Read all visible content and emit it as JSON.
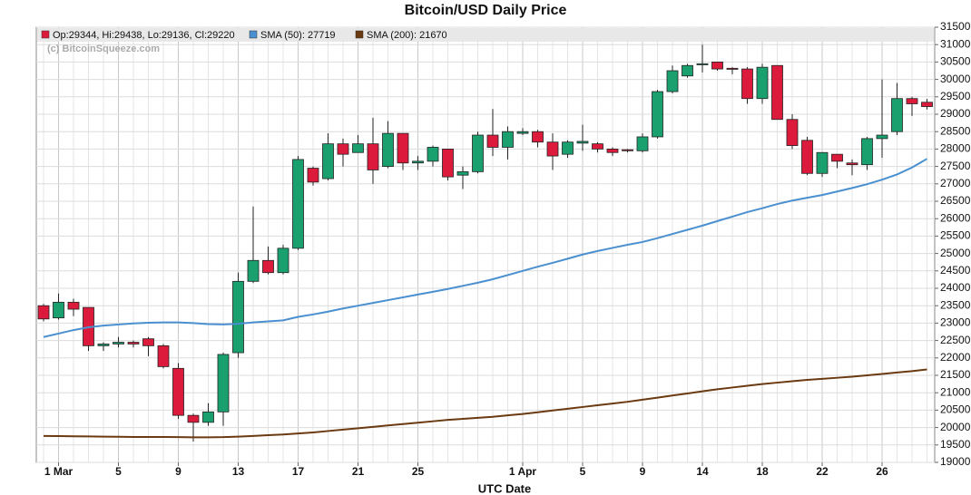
{
  "chart_data": {
    "type": "candlestick",
    "title": "Bitcoin/USD Daily Price",
    "x_label": "UTC Date",
    "watermark": "(c) BitcoinSqueeze.com",
    "categories": [
      null,
      "1 Mar",
      null,
      null,
      null,
      "5",
      null,
      null,
      null,
      "9",
      null,
      null,
      null,
      "13",
      null,
      null,
      null,
      "17",
      null,
      null,
      null,
      "21",
      null,
      null,
      null,
      "25",
      null,
      null,
      null,
      null,
      null,
      null,
      "1 Apr",
      null,
      null,
      null,
      "5",
      null,
      null,
      null,
      "9",
      null,
      null,
      null,
      "14",
      null,
      null,
      null,
      "18",
      null,
      null,
      null,
      "22",
      null,
      null,
      null,
      "26",
      null,
      null,
      null
    ],
    "ylim": [
      19000,
      31500
    ],
    "yticks": [
      19000,
      19500,
      20000,
      20500,
      21000,
      21500,
      22000,
      22500,
      23000,
      23500,
      24000,
      24500,
      25000,
      25500,
      26000,
      26500,
      27000,
      27500,
      28000,
      28500,
      29000,
      29500,
      30000,
      30500,
      31000,
      31500
    ],
    "grid": true,
    "series": [
      {
        "name": "Op:29344, Hi:29438, Lo:29136, Cl:29220",
        "color_up": "#1aa06e",
        "color_down": "#dc1a3c",
        "open": [
          23500,
          23150,
          23600,
          23450,
          22350,
          22400,
          22450,
          22550,
          22350,
          21700,
          20350,
          20150,
          20450,
          22150,
          24200,
          24800,
          24450,
          25150,
          27450,
          27150,
          28150,
          27900,
          28150,
          27500,
          28450,
          27600,
          27650,
          28000,
          27250,
          27350,
          28400,
          28050,
          28450,
          28500,
          28200,
          27850,
          28170,
          28150,
          28000,
          27980,
          27950,
          28350,
          29650,
          30100,
          30420,
          30500,
          30320,
          30300,
          29450,
          30400,
          28850,
          28250,
          27300,
          27850,
          27600,
          27550,
          28300,
          28500,
          29450,
          29344
        ],
        "high": [
          23550,
          23850,
          23700,
          23450,
          22450,
          22600,
          22500,
          22600,
          22400,
          21850,
          20400,
          20700,
          22150,
          24450,
          26350,
          25200,
          25250,
          27800,
          27500,
          28450,
          28300,
          28400,
          28900,
          28800,
          28450,
          27800,
          28100,
          28000,
          27500,
          28500,
          29150,
          28650,
          28600,
          28550,
          28450,
          28250,
          28700,
          28200,
          28050,
          28000,
          28450,
          29700,
          30400,
          30450,
          31000,
          30500,
          30350,
          30350,
          30450,
          30400,
          29000,
          28350,
          27900,
          27850,
          27700,
          28350,
          30000,
          29900,
          29500,
          29438
        ],
        "low": [
          23050,
          23100,
          23200,
          22200,
          22200,
          22300,
          22300,
          22050,
          21700,
          20250,
          19600,
          20050,
          20050,
          22000,
          24150,
          24400,
          24400,
          25100,
          26950,
          27100,
          27500,
          27900,
          27000,
          27450,
          27400,
          27400,
          27500,
          27100,
          26850,
          27300,
          27800,
          27700,
          28400,
          28050,
          27400,
          27750,
          27950,
          27900,
          27800,
          27900,
          27900,
          28300,
          29600,
          30050,
          30200,
          30250,
          30150,
          29300,
          29300,
          28850,
          28000,
          27250,
          27200,
          27450,
          27250,
          27400,
          27750,
          28400,
          28950,
          29136
        ],
        "close": [
          23120,
          23600,
          23400,
          22350,
          22400,
          22450,
          22400,
          22350,
          21750,
          20350,
          20150,
          20450,
          22100,
          24200,
          24800,
          24450,
          25150,
          27700,
          27050,
          28150,
          27850,
          28150,
          27400,
          28450,
          27600,
          27650,
          28050,
          27200,
          27350,
          28400,
          28050,
          28500,
          28500,
          28200,
          27800,
          28200,
          28220,
          28000,
          27900,
          27950,
          28350,
          29650,
          30250,
          30400,
          30450,
          30300,
          30290,
          29450,
          30350,
          28850,
          28100,
          27300,
          27900,
          27650,
          27550,
          28300,
          28400,
          29450,
          29300,
          29220
        ]
      },
      {
        "name": "SMA (50): 27719",
        "color": "#4a90d0",
        "values": [
          22600,
          22700,
          22800,
          22880,
          22930,
          22960,
          22990,
          23010,
          23020,
          23020,
          23000,
          22970,
          22960,
          22980,
          23020,
          23050,
          23080,
          23180,
          23250,
          23330,
          23420,
          23500,
          23580,
          23660,
          23740,
          23820,
          23900,
          23980,
          24070,
          24160,
          24260,
          24380,
          24500,
          24620,
          24730,
          24850,
          24970,
          25070,
          25160,
          25250,
          25330,
          25440,
          25560,
          25680,
          25800,
          25930,
          26060,
          26190,
          26300,
          26420,
          26520,
          26600,
          26680,
          26780,
          26880,
          26990,
          27120,
          27270,
          27470,
          27719
        ]
      },
      {
        "name": "SMA (200): 21670",
        "color": "#6b3a10",
        "values": [
          19760,
          19755,
          19750,
          19745,
          19740,
          19735,
          19730,
          19730,
          19730,
          19725,
          19720,
          19720,
          19725,
          19740,
          19760,
          19780,
          19800,
          19830,
          19860,
          19900,
          19940,
          19980,
          20020,
          20060,
          20100,
          20140,
          20180,
          20220,
          20250,
          20280,
          20310,
          20350,
          20390,
          20440,
          20490,
          20540,
          20590,
          20640,
          20690,
          20740,
          20800,
          20860,
          20920,
          20980,
          21040,
          21100,
          21150,
          21200,
          21250,
          21290,
          21330,
          21370,
          21400,
          21430,
          21460,
          21500,
          21540,
          21580,
          21620,
          21670
        ]
      }
    ]
  }
}
